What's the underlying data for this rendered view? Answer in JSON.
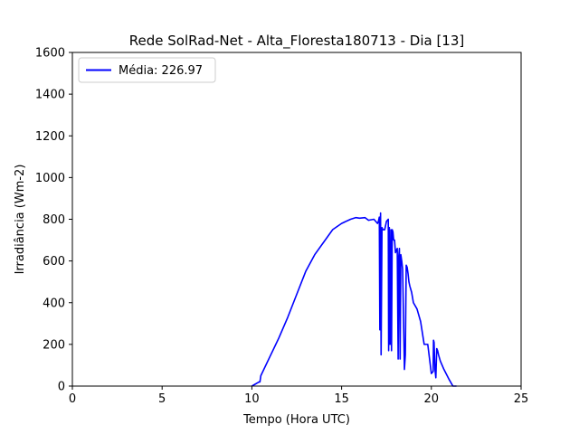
{
  "chart_data": {
    "type": "line",
    "title": "Rede SolRad-Net - Alta_Floresta180713 - Dia [13]",
    "xlabel": "Tempo (Hora UTC)",
    "ylabel": "Irradiância (Wm-2)",
    "xlim": [
      0,
      25
    ],
    "ylim": [
      0,
      1600
    ],
    "xticks": [
      0,
      5,
      10,
      15,
      20,
      25
    ],
    "yticks": [
      0,
      200,
      400,
      600,
      800,
      1000,
      1200,
      1400,
      1600
    ],
    "grid": false,
    "legend_position": "top-left",
    "series": [
      {
        "name": "Média: 226.97",
        "color": "#0000ff",
        "x": [
          10.0,
          10.4,
          10.45,
          10.5,
          11.0,
          11.5,
          12.0,
          12.5,
          13.0,
          13.5,
          14.0,
          14.5,
          15.0,
          15.5,
          15.8,
          16.0,
          16.3,
          16.5,
          16.8,
          17.0,
          17.05,
          17.1,
          17.13,
          17.17,
          17.2,
          17.25,
          17.3,
          17.4,
          17.5,
          17.6,
          17.62,
          17.66,
          17.7,
          17.75,
          17.78,
          17.82,
          17.86,
          17.9,
          17.95,
          18.0,
          18.1,
          18.15,
          18.18,
          18.22,
          18.26,
          18.3,
          18.35,
          18.4,
          18.5,
          18.55,
          18.6,
          18.65,
          18.7,
          18.75,
          18.8,
          18.9,
          19.0,
          19.2,
          19.4,
          19.6,
          19.8,
          20.0,
          20.1,
          20.12,
          20.15,
          20.2,
          20.25,
          20.3,
          20.35,
          20.4,
          20.5,
          20.7,
          21.0,
          21.2,
          21.4
        ],
        "y": [
          0,
          20,
          20,
          50,
          140,
          230,
          330,
          440,
          550,
          630,
          690,
          750,
          780,
          800,
          808,
          805,
          808,
          795,
          800,
          780,
          790,
          810,
          270,
          830,
          150,
          760,
          750,
          750,
          790,
          800,
          170,
          760,
          200,
          750,
          170,
          750,
          740,
          700,
          700,
          640,
          660,
          130,
          620,
          660,
          130,
          630,
          600,
          560,
          80,
          150,
          580,
          570,
          540,
          500,
          480,
          450,
          400,
          370,
          310,
          200,
          200,
          60,
          70,
          220,
          210,
          80,
          40,
          180,
          170,
          150,
          120,
          80,
          30,
          0,
          0
        ]
      }
    ]
  }
}
